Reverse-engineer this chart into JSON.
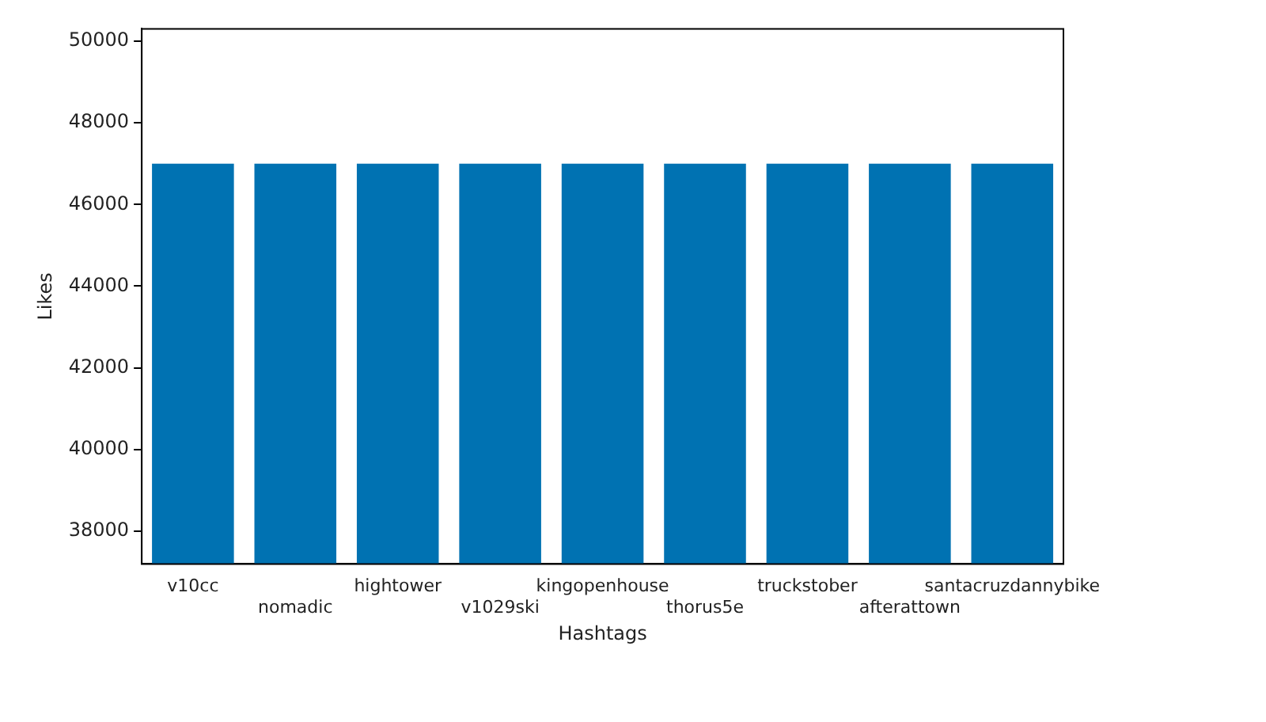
{
  "chart_data": {
    "type": "bar",
    "xlabel": "Hashtags",
    "ylabel": "Likes",
    "categories": [
      "v10cc",
      "nomadic",
      "hightower",
      "v1029ski",
      "kingopenhouse",
      "thorus5e",
      "truckstober",
      "afterattown",
      "santacruzdannybike"
    ],
    "values": [
      47000,
      47000,
      47000,
      47000,
      47000,
      47000,
      47000,
      47000,
      47000
    ],
    "color": "#0072b2",
    "ylim": [
      37200,
      50300
    ],
    "yticks": [
      38000,
      40000,
      42000,
      44000,
      46000,
      48000,
      50000
    ],
    "grid": false,
    "legend": false
  }
}
